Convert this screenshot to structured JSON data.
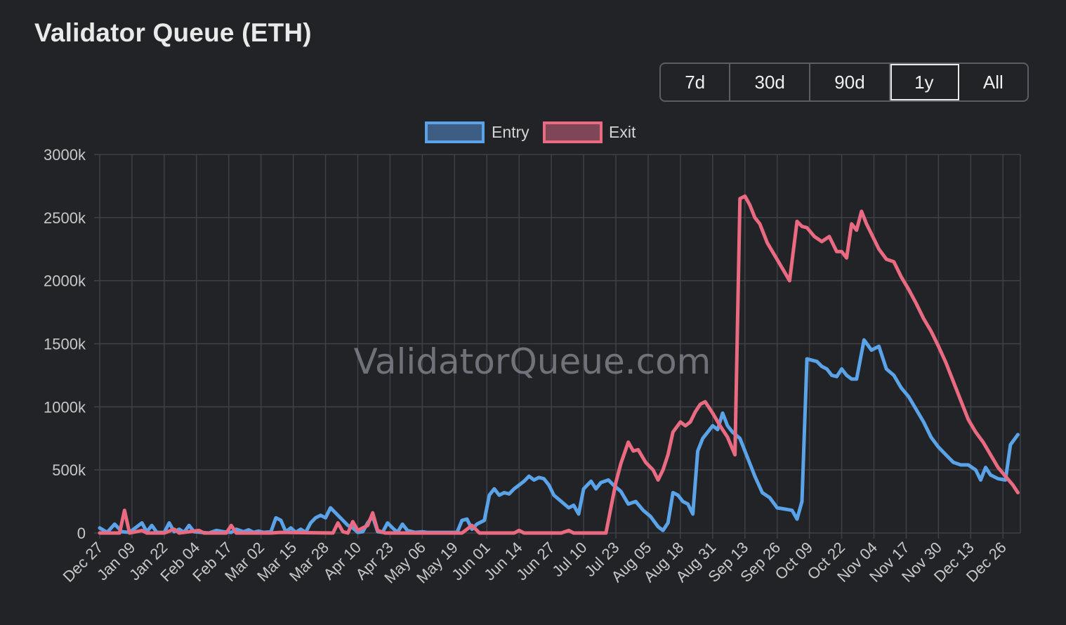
{
  "title": "Validator Queue (ETH)",
  "range_buttons": [
    {
      "label": "7d",
      "active": false
    },
    {
      "label": "30d",
      "active": false
    },
    {
      "label": "90d",
      "active": false
    },
    {
      "label": "1y",
      "active": true
    },
    {
      "label": "All",
      "active": false
    }
  ],
  "watermark": "ValidatorQueue.com",
  "colors": {
    "entry": "#5aa3e8",
    "exit": "#ea6a82",
    "grid": "#3e4146",
    "tick": "#c8c8c8"
  },
  "chart_data": {
    "type": "line",
    "title": "",
    "xlabel": "",
    "ylabel": "",
    "ylim": [
      0,
      3000
    ],
    "yticks": [
      "0",
      "500k",
      "1000k",
      "1500k",
      "2000k",
      "2500k",
      "3000k"
    ],
    "xlim": [
      "2024-12-27",
      "2026-01-02"
    ],
    "categories": [
      "Dec 27",
      "Jan 09",
      "Jan 22",
      "Feb 04",
      "Feb 17",
      "Mar 02",
      "Mar 15",
      "Mar 28",
      "Apr 10",
      "Apr 23",
      "May 06",
      "May 19",
      "Jun 01",
      "Jun 14",
      "Jun 27",
      "Jul 10",
      "Jul 23",
      "Aug 05",
      "Aug 18",
      "Aug 31",
      "Sep 13",
      "Sep 26",
      "Oct 09",
      "Oct 22",
      "Nov 04",
      "Nov 17",
      "Nov 30",
      "Dec 13",
      "Dec 26"
    ],
    "legend": "top-center",
    "grid": true,
    "unit": "k ETH",
    "series": [
      {
        "name": "Entry",
        "points": [
          [
            "2024-12-27",
            40
          ],
          [
            "2024-12-30",
            5
          ],
          [
            "2025-01-02",
            70
          ],
          [
            "2025-01-05",
            10
          ],
          [
            "2025-01-08",
            5
          ],
          [
            "2025-01-11",
            50
          ],
          [
            "2025-01-13",
            80
          ],
          [
            "2025-01-15",
            10
          ],
          [
            "2025-01-17",
            60
          ],
          [
            "2025-01-19",
            5
          ],
          [
            "2025-01-22",
            5
          ],
          [
            "2025-01-24",
            80
          ],
          [
            "2025-01-26",
            10
          ],
          [
            "2025-01-28",
            30
          ],
          [
            "2025-01-30",
            5
          ],
          [
            "2025-02-01",
            60
          ],
          [
            "2025-02-03",
            10
          ],
          [
            "2025-02-06",
            5
          ],
          [
            "2025-02-09",
            0
          ],
          [
            "2025-02-12",
            20
          ],
          [
            "2025-02-15",
            10
          ],
          [
            "2025-02-18",
            5
          ],
          [
            "2025-02-20",
            30
          ],
          [
            "2025-02-23",
            10
          ],
          [
            "2025-02-25",
            25
          ],
          [
            "2025-02-27",
            5
          ],
          [
            "2025-03-01",
            15
          ],
          [
            "2025-03-03",
            5
          ],
          [
            "2025-03-06",
            10
          ],
          [
            "2025-03-08",
            120
          ],
          [
            "2025-03-10",
            100
          ],
          [
            "2025-03-12",
            10
          ],
          [
            "2025-03-14",
            40
          ],
          [
            "2025-03-16",
            5
          ],
          [
            "2025-03-18",
            30
          ],
          [
            "2025-03-20",
            5
          ],
          [
            "2025-03-22",
            80
          ],
          [
            "2025-03-24",
            120
          ],
          [
            "2025-03-26",
            140
          ],
          [
            "2025-03-28",
            120
          ],
          [
            "2025-03-30",
            200
          ],
          [
            "2025-04-01",
            160
          ],
          [
            "2025-04-04",
            100
          ],
          [
            "2025-04-06",
            60
          ],
          [
            "2025-04-08",
            40
          ],
          [
            "2025-04-10",
            5
          ],
          [
            "2025-04-12",
            10
          ],
          [
            "2025-04-14",
            80
          ],
          [
            "2025-04-16",
            130
          ],
          [
            "2025-04-18",
            10
          ],
          [
            "2025-04-20",
            5
          ],
          [
            "2025-04-22",
            80
          ],
          [
            "2025-04-24",
            40
          ],
          [
            "2025-04-26",
            5
          ],
          [
            "2025-04-28",
            70
          ],
          [
            "2025-04-30",
            20
          ],
          [
            "2025-05-03",
            5
          ],
          [
            "2025-05-06",
            10
          ],
          [
            "2025-05-08",
            5
          ],
          [
            "2025-05-12",
            5
          ],
          [
            "2025-05-16",
            5
          ],
          [
            "2025-05-20",
            5
          ],
          [
            "2025-05-22",
            100
          ],
          [
            "2025-05-24",
            110
          ],
          [
            "2025-05-26",
            30
          ],
          [
            "2025-05-28",
            70
          ],
          [
            "2025-05-31",
            100
          ],
          [
            "2025-06-02",
            300
          ],
          [
            "2025-06-04",
            350
          ],
          [
            "2025-06-06",
            300
          ],
          [
            "2025-06-08",
            320
          ],
          [
            "2025-06-10",
            310
          ],
          [
            "2025-06-12",
            350
          ],
          [
            "2025-06-14",
            380
          ],
          [
            "2025-06-16",
            410
          ],
          [
            "2025-06-18",
            450
          ],
          [
            "2025-06-20",
            420
          ],
          [
            "2025-06-22",
            440
          ],
          [
            "2025-06-24",
            430
          ],
          [
            "2025-06-26",
            380
          ],
          [
            "2025-06-28",
            300
          ],
          [
            "2025-07-01",
            250
          ],
          [
            "2025-07-04",
            200
          ],
          [
            "2025-07-06",
            220
          ],
          [
            "2025-07-08",
            150
          ],
          [
            "2025-07-10",
            350
          ],
          [
            "2025-07-13",
            410
          ],
          [
            "2025-07-15",
            350
          ],
          [
            "2025-07-17",
            400
          ],
          [
            "2025-07-20",
            420
          ],
          [
            "2025-07-22",
            380
          ],
          [
            "2025-07-25",
            330
          ],
          [
            "2025-07-28",
            230
          ],
          [
            "2025-07-31",
            250
          ],
          [
            "2025-08-03",
            180
          ],
          [
            "2025-08-06",
            130
          ],
          [
            "2025-08-09",
            50
          ],
          [
            "2025-08-11",
            20
          ],
          [
            "2025-08-13",
            80
          ],
          [
            "2025-08-15",
            320
          ],
          [
            "2025-08-17",
            300
          ],
          [
            "2025-08-19",
            250
          ],
          [
            "2025-08-21",
            230
          ],
          [
            "2025-08-23",
            150
          ],
          [
            "2025-08-25",
            650
          ],
          [
            "2025-08-27",
            750
          ],
          [
            "2025-08-29",
            800
          ],
          [
            "2025-08-31",
            850
          ],
          [
            "2025-09-02",
            820
          ],
          [
            "2025-09-04",
            950
          ],
          [
            "2025-09-06",
            850
          ],
          [
            "2025-09-08",
            800
          ],
          [
            "2025-09-11",
            750
          ],
          [
            "2025-09-14",
            600
          ],
          [
            "2025-09-17",
            450
          ],
          [
            "2025-09-20",
            320
          ],
          [
            "2025-09-23",
            280
          ],
          [
            "2025-09-26",
            200
          ],
          [
            "2025-09-29",
            190
          ],
          [
            "2025-10-02",
            180
          ],
          [
            "2025-10-04",
            110
          ],
          [
            "2025-10-06",
            250
          ],
          [
            "2025-10-08",
            1380
          ],
          [
            "2025-10-10",
            1370
          ],
          [
            "2025-10-12",
            1360
          ],
          [
            "2025-10-14",
            1320
          ],
          [
            "2025-10-16",
            1300
          ],
          [
            "2025-10-18",
            1250
          ],
          [
            "2025-10-20",
            1240
          ],
          [
            "2025-10-22",
            1300
          ],
          [
            "2025-10-24",
            1250
          ],
          [
            "2025-10-26",
            1220
          ],
          [
            "2025-10-28",
            1220
          ],
          [
            "2025-10-31",
            1530
          ],
          [
            "2025-11-03",
            1450
          ],
          [
            "2025-11-06",
            1480
          ],
          [
            "2025-11-09",
            1300
          ],
          [
            "2025-11-12",
            1250
          ],
          [
            "2025-11-15",
            1150
          ],
          [
            "2025-11-18",
            1080
          ],
          [
            "2025-11-21",
            980
          ],
          [
            "2025-11-24",
            880
          ],
          [
            "2025-11-27",
            760
          ],
          [
            "2025-11-30",
            680
          ],
          [
            "2025-12-03",
            620
          ],
          [
            "2025-12-06",
            560
          ],
          [
            "2025-12-09",
            540
          ],
          [
            "2025-12-12",
            540
          ],
          [
            "2025-12-15",
            500
          ],
          [
            "2025-12-17",
            420
          ],
          [
            "2025-12-19",
            520
          ],
          [
            "2025-12-21",
            460
          ],
          [
            "2025-12-24",
            430
          ],
          [
            "2025-12-27",
            420
          ],
          [
            "2025-12-29",
            700
          ],
          [
            "2026-01-01",
            780
          ]
        ]
      },
      {
        "name": "Exit",
        "points": [
          [
            "2024-12-27",
            0
          ],
          [
            "2025-01-04",
            0
          ],
          [
            "2025-01-06",
            180
          ],
          [
            "2025-01-08",
            0
          ],
          [
            "2025-01-13",
            20
          ],
          [
            "2025-01-15",
            0
          ],
          [
            "2025-01-22",
            0
          ],
          [
            "2025-01-26",
            30
          ],
          [
            "2025-01-28",
            0
          ],
          [
            "2025-02-05",
            20
          ],
          [
            "2025-02-07",
            0
          ],
          [
            "2025-02-16",
            0
          ],
          [
            "2025-02-18",
            60
          ],
          [
            "2025-02-20",
            0
          ],
          [
            "2025-03-06",
            0
          ],
          [
            "2025-03-10",
            5
          ],
          [
            "2025-03-31",
            0
          ],
          [
            "2025-04-02",
            80
          ],
          [
            "2025-04-04",
            10
          ],
          [
            "2025-04-06",
            0
          ],
          [
            "2025-04-08",
            90
          ],
          [
            "2025-04-10",
            20
          ],
          [
            "2025-04-14",
            60
          ],
          [
            "2025-04-16",
            160
          ],
          [
            "2025-04-18",
            20
          ],
          [
            "2025-04-21",
            0
          ],
          [
            "2025-05-18",
            0
          ],
          [
            "2025-05-22",
            0
          ],
          [
            "2025-05-26",
            60
          ],
          [
            "2025-05-29",
            0
          ],
          [
            "2025-06-12",
            0
          ],
          [
            "2025-06-14",
            20
          ],
          [
            "2025-06-16",
            0
          ],
          [
            "2025-07-01",
            0
          ],
          [
            "2025-07-04",
            20
          ],
          [
            "2025-07-06",
            0
          ],
          [
            "2025-07-19",
            0
          ],
          [
            "2025-07-21",
            200
          ],
          [
            "2025-07-23",
            400
          ],
          [
            "2025-07-25",
            550
          ],
          [
            "2025-07-28",
            720
          ],
          [
            "2025-07-30",
            650
          ],
          [
            "2025-08-01",
            660
          ],
          [
            "2025-08-04",
            560
          ],
          [
            "2025-08-07",
            500
          ],
          [
            "2025-08-09",
            420
          ],
          [
            "2025-08-11",
            500
          ],
          [
            "2025-08-13",
            620
          ],
          [
            "2025-08-15",
            800
          ],
          [
            "2025-08-18",
            880
          ],
          [
            "2025-08-20",
            850
          ],
          [
            "2025-08-22",
            880
          ],
          [
            "2025-08-24",
            960
          ],
          [
            "2025-08-26",
            1020
          ],
          [
            "2025-08-28",
            1040
          ],
          [
            "2025-08-31",
            950
          ],
          [
            "2025-09-03",
            850
          ],
          [
            "2025-09-06",
            760
          ],
          [
            "2025-09-09",
            620
          ],
          [
            "2025-09-11",
            2650
          ],
          [
            "2025-09-13",
            2670
          ],
          [
            "2025-09-15",
            2600
          ],
          [
            "2025-09-17",
            2500
          ],
          [
            "2025-09-19",
            2450
          ],
          [
            "2025-09-22",
            2300
          ],
          [
            "2025-09-25",
            2200
          ],
          [
            "2025-09-28",
            2100
          ],
          [
            "2025-10-01",
            2000
          ],
          [
            "2025-10-04",
            2470
          ],
          [
            "2025-10-06",
            2430
          ],
          [
            "2025-10-08",
            2420
          ],
          [
            "2025-10-11",
            2350
          ],
          [
            "2025-10-14",
            2310
          ],
          [
            "2025-10-17",
            2350
          ],
          [
            "2025-10-20",
            2230
          ],
          [
            "2025-10-22",
            2230
          ],
          [
            "2025-10-24",
            2180
          ],
          [
            "2025-10-26",
            2450
          ],
          [
            "2025-10-28",
            2400
          ],
          [
            "2025-10-30",
            2550
          ],
          [
            "2025-11-01",
            2450
          ],
          [
            "2025-11-03",
            2370
          ],
          [
            "2025-11-06",
            2250
          ],
          [
            "2025-11-09",
            2170
          ],
          [
            "2025-11-12",
            2150
          ],
          [
            "2025-11-15",
            2030
          ],
          [
            "2025-11-18",
            1930
          ],
          [
            "2025-11-21",
            1820
          ],
          [
            "2025-11-24",
            1700
          ],
          [
            "2025-11-27",
            1600
          ],
          [
            "2025-11-30",
            1480
          ],
          [
            "2025-12-03",
            1350
          ],
          [
            "2025-12-06",
            1200
          ],
          [
            "2025-12-09",
            1050
          ],
          [
            "2025-12-12",
            900
          ],
          [
            "2025-12-15",
            800
          ],
          [
            "2025-12-18",
            720
          ],
          [
            "2025-12-21",
            620
          ],
          [
            "2025-12-24",
            520
          ],
          [
            "2025-12-27",
            450
          ],
          [
            "2025-12-30",
            380
          ],
          [
            "2026-01-01",
            320
          ]
        ]
      }
    ]
  }
}
